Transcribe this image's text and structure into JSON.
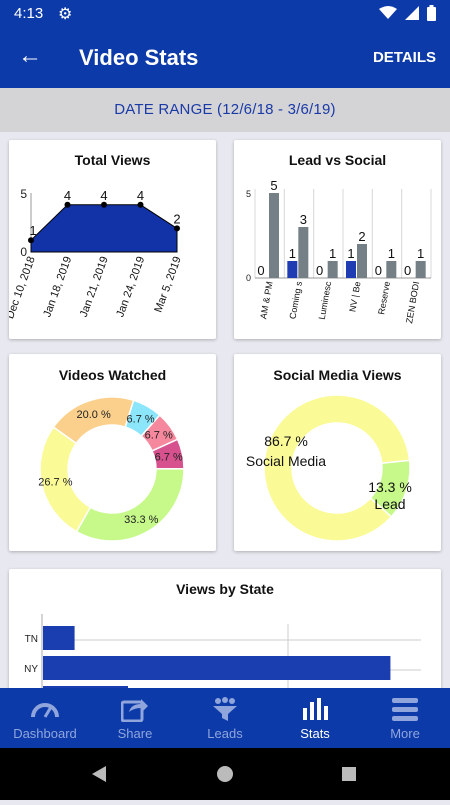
{
  "status_bar": {
    "time": "4:13",
    "icons": [
      "gear-icon",
      "wifi-icon",
      "signal-icon",
      "battery-icon"
    ]
  },
  "app_bar": {
    "title": "Video Stats",
    "details_label": "DETAILS"
  },
  "date_range": "DATE RANGE (12/6/18 - 3/6/19)",
  "cards": {
    "total_views": "Total Views",
    "lead_vs_social": "Lead vs Social",
    "videos_watched": "Videos Watched",
    "social_media_views": "Social Media Views",
    "views_by_state": "Views by State"
  },
  "nav": [
    {
      "label": "Dashboard",
      "icon": "gauge-icon",
      "active": false
    },
    {
      "label": "Share",
      "icon": "share-icon",
      "active": false
    },
    {
      "label": "Leads",
      "icon": "funnel-people-icon",
      "active": false
    },
    {
      "label": "Stats",
      "icon": "bar-chart-icon",
      "active": true
    },
    {
      "label": "More",
      "icon": "menu-icon",
      "active": false
    }
  ],
  "colors": {
    "primary": "#0d3aa9",
    "bar_gray": "#757f86",
    "bar_blue": "#1f3cb2"
  },
  "chart_data": [
    {
      "type": "area",
      "title": "Total Views",
      "categories": [
        "Dec 10, 2018",
        "Jan 18, 2019",
        "Jan 21, 2019",
        "Jan 24, 2019",
        "Mar 5, 2019"
      ],
      "values": [
        1,
        4,
        4,
        4,
        2
      ],
      "ylim": [
        0,
        5
      ],
      "yticks": [
        "0",
        "5"
      ]
    },
    {
      "type": "bar",
      "title": "Lead vs Social",
      "categories": [
        "AM & PM",
        "Coming s",
        "Luminesc",
        "NV | Be",
        "Reserve",
        "ZEN BODI"
      ],
      "series": [
        {
          "values": [
            0,
            1,
            0,
            1,
            0,
            0
          ]
        },
        {
          "values": [
            5,
            3,
            1,
            2,
            1,
            1
          ]
        }
      ],
      "ylim": [
        0,
        5
      ],
      "yticks": [
        "0",
        "5"
      ]
    },
    {
      "type": "pie",
      "title": "Videos Watched",
      "slices": [
        {
          "label": "20.0 %",
          "value": 20.0,
          "color": "#fbd08c"
        },
        {
          "label": "6.7 %",
          "value": 6.7,
          "color": "#8be6fb"
        },
        {
          "label": "6.7 %",
          "value": 6.7,
          "color": "#f6889e"
        },
        {
          "label": "6.7 %",
          "value": 6.7,
          "color": "#d6518e"
        },
        {
          "label": "33.3 %",
          "value": 33.3,
          "color": "#c6f989"
        },
        {
          "label": "26.7 %",
          "value": 26.7,
          "color": "#fafa96"
        }
      ]
    },
    {
      "type": "pie",
      "title": "Social Media Views",
      "slices": [
        {
          "label": "86.7 %",
          "name": "Social Media",
          "value": 86.7,
          "color": "#fafa96"
        },
        {
          "label": "13.3 %",
          "name": "Lead",
          "value": 13.3,
          "color": "#c6f989"
        }
      ]
    },
    {
      "type": "bar",
      "title": "Views by State",
      "orientation": "horizontal",
      "categories": [
        "TN",
        "NY"
      ],
      "values": [
        1,
        11
      ]
    }
  ]
}
